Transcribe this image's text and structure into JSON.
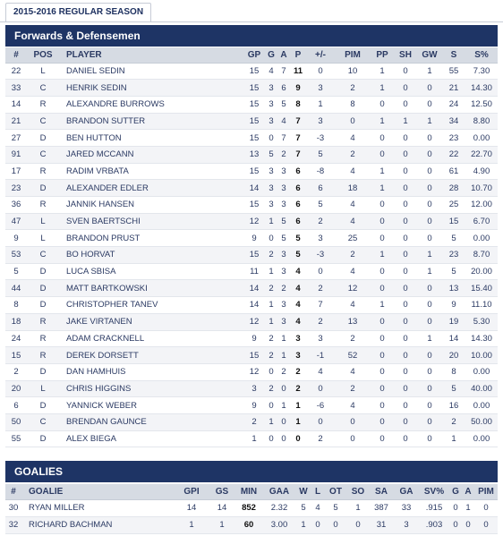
{
  "season_tab": "2015-2016 REGULAR SEASON",
  "skaters": {
    "title": "Forwards & Defensemen",
    "columns": [
      "#",
      "POS",
      "PLAYER",
      "GP",
      "G",
      "A",
      "P",
      "+/-",
      "PIM",
      "PP",
      "SH",
      "GW",
      "S",
      "S%"
    ],
    "rows": [
      [
        "22",
        "L",
        "DANIEL SEDIN",
        "15",
        "4",
        "7",
        "11",
        "0",
        "10",
        "1",
        "0",
        "1",
        "55",
        "7.30"
      ],
      [
        "33",
        "C",
        "HENRIK SEDIN",
        "15",
        "3",
        "6",
        "9",
        "3",
        "2",
        "1",
        "0",
        "0",
        "21",
        "14.30"
      ],
      [
        "14",
        "R",
        "ALEXANDRE BURROWS",
        "15",
        "3",
        "5",
        "8",
        "1",
        "8",
        "0",
        "0",
        "0",
        "24",
        "12.50"
      ],
      [
        "21",
        "C",
        "BRANDON SUTTER",
        "15",
        "3",
        "4",
        "7",
        "3",
        "0",
        "1",
        "1",
        "1",
        "34",
        "8.80"
      ],
      [
        "27",
        "D",
        "BEN HUTTON",
        "15",
        "0",
        "7",
        "7",
        "-3",
        "4",
        "0",
        "0",
        "0",
        "23",
        "0.00"
      ],
      [
        "91",
        "C",
        "JARED MCCANN",
        "13",
        "5",
        "2",
        "7",
        "5",
        "2",
        "0",
        "0",
        "0",
        "22",
        "22.70"
      ],
      [
        "17",
        "R",
        "RADIM VRBATA",
        "15",
        "3",
        "3",
        "6",
        "-8",
        "4",
        "1",
        "0",
        "0",
        "61",
        "4.90"
      ],
      [
        "23",
        "D",
        "ALEXANDER EDLER",
        "14",
        "3",
        "3",
        "6",
        "6",
        "18",
        "1",
        "0",
        "0",
        "28",
        "10.70"
      ],
      [
        "36",
        "R",
        "JANNIK HANSEN",
        "15",
        "3",
        "3",
        "6",
        "5",
        "4",
        "0",
        "0",
        "0",
        "25",
        "12.00"
      ],
      [
        "47",
        "L",
        "SVEN BAERTSCHI",
        "12",
        "1",
        "5",
        "6",
        "2",
        "4",
        "0",
        "0",
        "0",
        "15",
        "6.70"
      ],
      [
        "9",
        "L",
        "BRANDON PRUST",
        "9",
        "0",
        "5",
        "5",
        "3",
        "25",
        "0",
        "0",
        "0",
        "5",
        "0.00"
      ],
      [
        "53",
        "C",
        "BO HORVAT",
        "15",
        "2",
        "3",
        "5",
        "-3",
        "2",
        "1",
        "0",
        "1",
        "23",
        "8.70"
      ],
      [
        "5",
        "D",
        "LUCA SBISA",
        "11",
        "1",
        "3",
        "4",
        "0",
        "4",
        "0",
        "0",
        "1",
        "5",
        "20.00"
      ],
      [
        "44",
        "D",
        "MATT BARTKOWSKI",
        "14",
        "2",
        "2",
        "4",
        "2",
        "12",
        "0",
        "0",
        "0",
        "13",
        "15.40"
      ],
      [
        "8",
        "D",
        "CHRISTOPHER TANEV",
        "14",
        "1",
        "3",
        "4",
        "7",
        "4",
        "1",
        "0",
        "0",
        "9",
        "11.10"
      ],
      [
        "18",
        "R",
        "JAKE VIRTANEN",
        "12",
        "1",
        "3",
        "4",
        "2",
        "13",
        "0",
        "0",
        "0",
        "19",
        "5.30"
      ],
      [
        "24",
        "R",
        "ADAM CRACKNELL",
        "9",
        "2",
        "1",
        "3",
        "3",
        "2",
        "0",
        "0",
        "1",
        "14",
        "14.30"
      ],
      [
        "15",
        "R",
        "DEREK DORSETT",
        "15",
        "2",
        "1",
        "3",
        "-1",
        "52",
        "0",
        "0",
        "0",
        "20",
        "10.00"
      ],
      [
        "2",
        "D",
        "DAN HAMHUIS",
        "12",
        "0",
        "2",
        "2",
        "4",
        "4",
        "0",
        "0",
        "0",
        "8",
        "0.00"
      ],
      [
        "20",
        "L",
        "CHRIS HIGGINS",
        "3",
        "2",
        "0",
        "2",
        "0",
        "2",
        "0",
        "0",
        "0",
        "5",
        "40.00"
      ],
      [
        "6",
        "D",
        "YANNICK WEBER",
        "9",
        "0",
        "1",
        "1",
        "-6",
        "4",
        "0",
        "0",
        "0",
        "16",
        "0.00"
      ],
      [
        "50",
        "C",
        "BRENDAN GAUNCE",
        "2",
        "1",
        "0",
        "1",
        "0",
        "0",
        "0",
        "0",
        "0",
        "2",
        "50.00"
      ],
      [
        "55",
        "D",
        "ALEX BIEGA",
        "1",
        "0",
        "0",
        "0",
        "2",
        "0",
        "0",
        "0",
        "0",
        "1",
        "0.00"
      ]
    ]
  },
  "goalies": {
    "title": "GOALIES",
    "columns": [
      "#",
      "GOALIE",
      "GPI",
      "GS",
      "MIN",
      "GAA",
      "W",
      "L",
      "OT",
      "SO",
      "SA",
      "GA",
      "SV%",
      "G",
      "A",
      "PIM"
    ],
    "rows": [
      [
        "30",
        "RYAN MILLER",
        "14",
        "14",
        "852",
        "2.32",
        "5",
        "4",
        "5",
        "1",
        "387",
        "33",
        ".915",
        "0",
        "1",
        "0"
      ],
      [
        "32",
        "RICHARD BACHMAN",
        "1",
        "1",
        "60",
        "3.00",
        "1",
        "0",
        "0",
        "0",
        "31",
        "3",
        ".903",
        "0",
        "0",
        "0"
      ]
    ]
  }
}
